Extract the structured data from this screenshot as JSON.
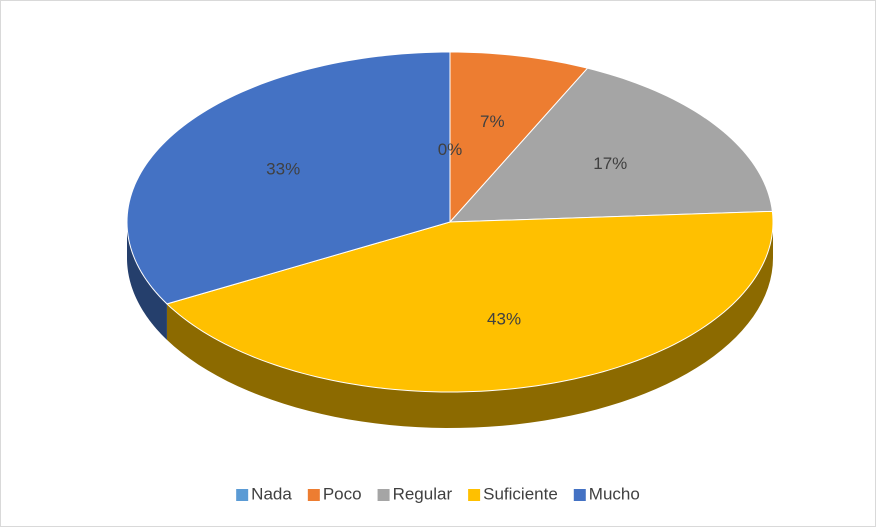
{
  "chart_data": {
    "type": "pie",
    "categories": [
      "Nada",
      "Poco",
      "Regular",
      "Suficiente",
      "Mucho"
    ],
    "values": [
      0,
      7,
      17,
      43,
      33
    ],
    "value_labels": [
      "0%",
      "7%",
      "17%",
      "43%",
      "33%"
    ],
    "colors": [
      "#5b9bd5",
      "#ed7d31",
      "#a5a5a5",
      "#ffc000",
      "#4472c4"
    ],
    "legend": "bottom"
  }
}
